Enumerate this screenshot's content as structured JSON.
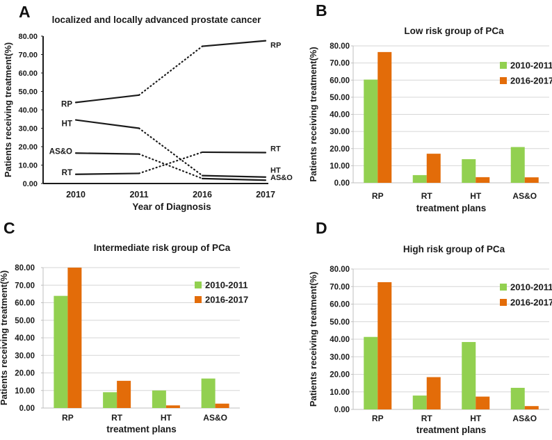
{
  "palette": {
    "green": "#92D050",
    "orange": "#E36C09",
    "line": "#1A1A1A",
    "grid": "#D6D6D6",
    "axis": "#BFBFBF",
    "text": "#1A1A1A",
    "background": "#FFFFFF"
  },
  "chart_data": [
    {
      "panel": "A",
      "type": "line",
      "title": "localized and locally advanced prostate cancer",
      "xlabel": "Year of Diagnosis",
      "ylabel": "Patients receiving treatment(%)",
      "x": [
        "2010",
        "2011",
        "2016",
        "2017"
      ],
      "ylim": [
        0,
        80
      ],
      "ytick_labels": [
        "0.00",
        "10.00",
        "20.00",
        "30.00",
        "40.00",
        "50.00",
        "60.00",
        "70.00",
        "80.00"
      ],
      "grid": false,
      "legend_position": "none",
      "segment_styles": [
        "solid",
        "dotted",
        "solid"
      ],
      "series": [
        {
          "name": "RP",
          "values": [
            44.0,
            48.0,
            74.5,
            77.5
          ]
        },
        {
          "name": "HT",
          "values": [
            34.5,
            30.0,
            4.3,
            3.5
          ]
        },
        {
          "name": "AS&O",
          "values": [
            16.5,
            16.0,
            2.7,
            1.8
          ]
        },
        {
          "name": "RT",
          "values": [
            5.0,
            5.5,
            17.0,
            16.8
          ]
        }
      ]
    },
    {
      "panel": "B",
      "type": "bar",
      "title": "Low risk group of PCa",
      "xlabel": "treatment plans",
      "ylabel": "Patients receiving treatment(%)",
      "categories": [
        "RP",
        "RT",
        "HT",
        "AS&O"
      ],
      "ylim": [
        0,
        80
      ],
      "ytick_labels": [
        "0.00",
        "10.00",
        "20.00",
        "30.00",
        "40.00",
        "50.00",
        "60.00",
        "70.00",
        "80.00"
      ],
      "grid": true,
      "legend_position": "upper-right",
      "series": [
        {
          "name": "2010-2011",
          "color_key": "green",
          "values": [
            60.3,
            4.5,
            13.8,
            20.9
          ]
        },
        {
          "name": "2016-2017",
          "color_key": "orange",
          "values": [
            76.4,
            17.0,
            3.3,
            3.2
          ]
        }
      ]
    },
    {
      "panel": "C",
      "type": "bar",
      "title": "Intermediate risk group of  PCa",
      "xlabel": "treatment plans",
      "ylabel": "Patients receiving treatment(%)",
      "categories": [
        "RP",
        "RT",
        "HT",
        "AS&O"
      ],
      "ylim": [
        0,
        80
      ],
      "ytick_labels": [
        "0.00",
        "10.00",
        "20.00",
        "30.00",
        "40.00",
        "50.00",
        "60.00",
        "70.00",
        "80.00"
      ],
      "grid": true,
      "legend_position": "upper-right",
      "series": [
        {
          "name": "2010-2011",
          "color_key": "green",
          "values": [
            63.9,
            9.0,
            10.0,
            16.8
          ]
        },
        {
          "name": "2016-2017",
          "color_key": "orange",
          "values": [
            80.0,
            15.5,
            1.5,
            2.5
          ]
        }
      ]
    },
    {
      "panel": "D",
      "type": "bar",
      "title": "High risk group of PCa",
      "xlabel": "treatment plans",
      "ylabel": "Patients receiving treatment(%)",
      "categories": [
        "RP",
        "RT",
        "HT",
        "AS&O"
      ],
      "ylim": [
        0,
        80
      ],
      "ytick_labels": [
        "0.00",
        "10.00",
        "20.00",
        "30.00",
        "40.00",
        "50.00",
        "60.00",
        "70.00",
        "80.00"
      ],
      "grid": true,
      "legend_position": "upper-right",
      "series": [
        {
          "name": "2010-2011",
          "color_key": "green",
          "values": [
            41.3,
            7.9,
            38.4,
            12.3
          ]
        },
        {
          "name": "2016-2017",
          "color_key": "orange",
          "values": [
            72.5,
            18.4,
            7.3,
            1.9
          ]
        }
      ]
    }
  ]
}
